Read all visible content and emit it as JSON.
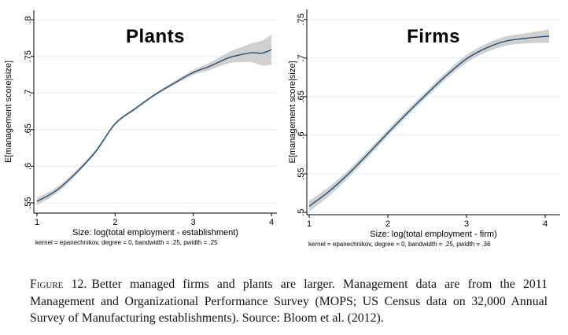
{
  "colors": {
    "line": "#1a476f",
    "band": "#d0d0d0",
    "grid": "#e6eef2",
    "axis": "#000000",
    "background": "#ffffff"
  },
  "chart_data": [
    {
      "type": "line",
      "title": "Plants",
      "ylabel": "E[management score|size]",
      "xlabel": "Size: log(total employment - establishment)",
      "note": "kernel = epanechnikov, degree = 0, bandwidth = .25, pwidth = .25",
      "grid": true,
      "legend": "none",
      "xlim": [
        0.96,
        4.07
      ],
      "ylim": [
        0.536,
        0.813
      ],
      "xticks": [
        1,
        2,
        3,
        4
      ],
      "xtick_labels": [
        "1",
        "2",
        "3",
        "4"
      ],
      "yticks": [
        0.55,
        0.6,
        0.65,
        0.7,
        0.75,
        0.8
      ],
      "ytick_labels": [
        ".55",
        ".6",
        ".65",
        ".7",
        ".75",
        ".8"
      ],
      "series": [
        {
          "name": "kernel mean with confidence band",
          "x": [
            1,
            1.25,
            1.5,
            1.75,
            2,
            2.25,
            2.5,
            2.75,
            3,
            3.2,
            3.45,
            3.6,
            3.75,
            3.88,
            4
          ],
          "y": [
            0.552,
            0.567,
            0.591,
            0.62,
            0.658,
            0.678,
            0.697,
            0.713,
            0.728,
            0.736,
            0.748,
            0.752,
            0.755,
            0.7545,
            0.759
          ],
          "ci_halfwidth": [
            0.005,
            0.004,
            0.003,
            0.0025,
            0.002,
            0.002,
            0.002,
            0.0025,
            0.0035,
            0.005,
            0.0075,
            0.01,
            0.013,
            0.017,
            0.0205
          ]
        }
      ]
    },
    {
      "type": "line",
      "title": "Firms",
      "ylabel": "E[management score|size]",
      "xlabel": "Size: log(total employment - firm)",
      "note": "kernel = epanechnikov, degree = 0, bandwidth = .25, pwidth = .36",
      "grid": true,
      "legend": "none",
      "xlim": [
        0.97,
        4.19
      ],
      "ylim": [
        0.497,
        0.763
      ],
      "xticks": [
        1,
        2,
        3,
        4
      ],
      "xtick_labels": [
        "1",
        "2",
        "3",
        "4"
      ],
      "yticks": [
        0.5,
        0.55,
        0.6,
        0.65,
        0.7,
        0.75
      ],
      "ytick_labels": [
        ".5",
        ".55",
        ".6",
        ".65",
        ".7",
        ".75"
      ],
      "series": [
        {
          "name": "kernel mean with confidence band",
          "x": [
            1,
            1.25,
            1.5,
            1.75,
            2,
            2.25,
            2.5,
            2.75,
            3,
            3.25,
            3.5,
            3.75,
            4.05
          ],
          "y": [
            0.508,
            0.527,
            0.55,
            0.576,
            0.603,
            0.629,
            0.654,
            0.678,
            0.699,
            0.713,
            0.722,
            0.7255,
            0.7285
          ],
          "ci_halfwidth": [
            0.007,
            0.006,
            0.005,
            0.0045,
            0.004,
            0.004,
            0.004,
            0.0045,
            0.005,
            0.0055,
            0.006,
            0.0065,
            0.0085
          ]
        }
      ]
    }
  ],
  "caption": {
    "label": "Figure 12.",
    "text": "Better managed firms and plants are larger. Management data are from the 2011 Management and Organizational Performance Survey (MOPS; US Census data on 32,000 Annual Survey of Manufacturing establishments). Source: Bloom et al. (2012)."
  }
}
